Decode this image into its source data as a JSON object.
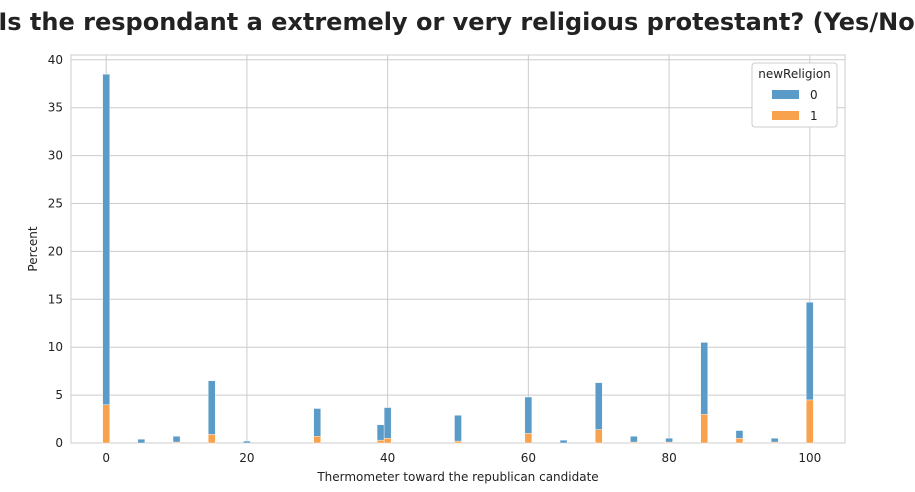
{
  "chart_data": {
    "type": "bar",
    "stacked": true,
    "title": "Is the respondant a extremely or very religious protestant? (Yes/No)",
    "xlabel": "Thermometer toward the republican candidate",
    "ylabel": "Percent",
    "xlim": [
      -5,
      105
    ],
    "ylim": [
      0,
      40.5
    ],
    "bin_width": 1,
    "xticks": [
      0,
      20,
      40,
      60,
      80,
      100
    ],
    "yticks": [
      0,
      5,
      10,
      15,
      20,
      25,
      30,
      35,
      40
    ],
    "grid": true,
    "legend": {
      "title": "newReligion",
      "placement": "top-right"
    },
    "colors": {
      "0": "#5b9bc8",
      "1": "#f9a24e"
    },
    "x": [
      0,
      5,
      10,
      15,
      20,
      30,
      39,
      40,
      50,
      60,
      65,
      70,
      75,
      80,
      85,
      90,
      95,
      100
    ],
    "series": [
      {
        "name": "0",
        "values": [
          34.5,
          0.4,
          0.6,
          5.6,
          0.2,
          2.9,
          1.6,
          3.2,
          2.7,
          3.8,
          0.3,
          4.9,
          0.6,
          0.4,
          7.5,
          0.8,
          0.4,
          10.2
        ]
      },
      {
        "name": "1",
        "values": [
          4.0,
          0.0,
          0.1,
          0.9,
          0.0,
          0.7,
          0.3,
          0.5,
          0.2,
          1.0,
          0.0,
          1.4,
          0.1,
          0.1,
          3.0,
          0.5,
          0.1,
          4.5
        ]
      }
    ]
  }
}
